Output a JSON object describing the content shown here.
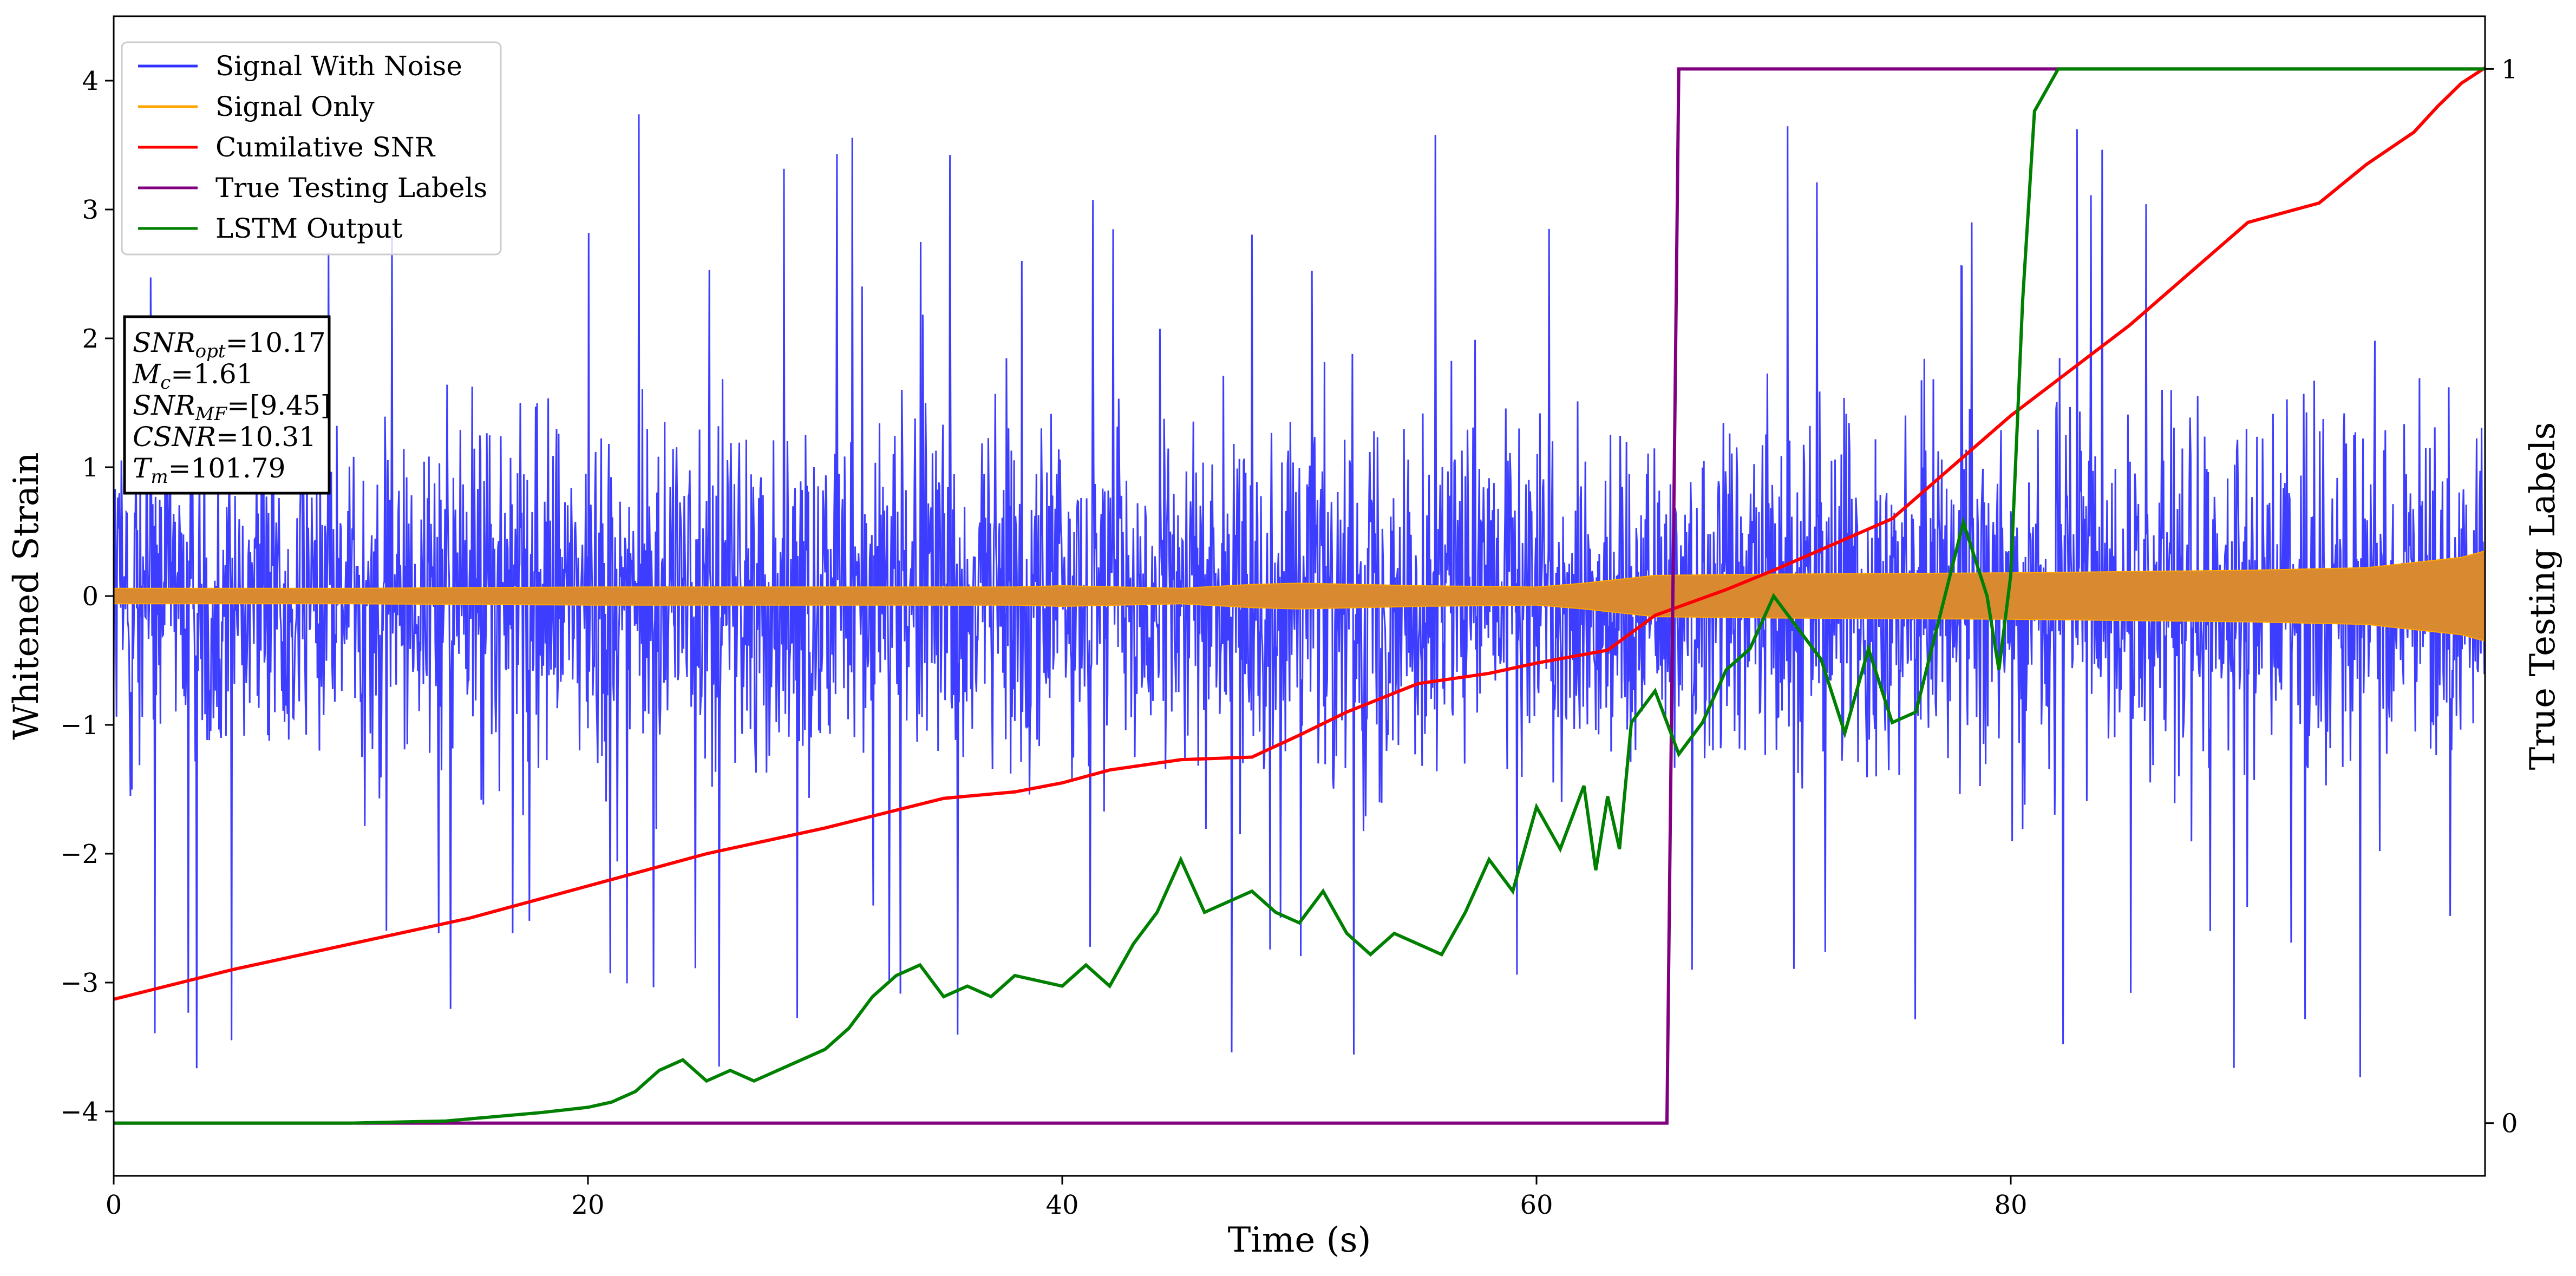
{
  "chart_data": {
    "type": "line",
    "xlabel": "Time (s)",
    "ylabel": "Whitened Strain",
    "y2label": "True Testing Labels",
    "xlim": [
      0,
      100
    ],
    "ylim": [
      -4.5,
      4.5
    ],
    "y2lim": [
      -0.05,
      1.05
    ],
    "x_ticks": [
      0,
      20,
      40,
      60,
      80
    ],
    "y_ticks": [
      -4,
      -3,
      -2,
      -1,
      0,
      1,
      2,
      3,
      4
    ],
    "y2_ticks": [
      0,
      1
    ],
    "grid": false,
    "legend_position": "top-left",
    "annotation": {
      "lines": [
        {
          "sym": "SNR",
          "sub": "opt",
          "val": "=10.17"
        },
        {
          "sym": "M",
          "sub": "c",
          "val": "=1.61"
        },
        {
          "sym": "SNR",
          "sub": "MF",
          "val": "=[9.45]"
        },
        {
          "sym": "CSNR",
          "sub": "",
          "val": "=10.31"
        },
        {
          "sym": "T",
          "sub": "m",
          "val": "=101.79"
        }
      ]
    },
    "series": [
      {
        "name": "Signal With Noise",
        "color": "#3333ff",
        "axis": "left",
        "kind": "noise",
        "typical_range": [
          -1.5,
          1.5
        ],
        "max_abs": 4.0
      },
      {
        "name": "Signal Only",
        "color": "#ffa500",
        "axis": "left",
        "kind": "envelope",
        "x": [
          0,
          10,
          20,
          30,
          38,
          40,
          45,
          48,
          50,
          55,
          60,
          62,
          65,
          70,
          80,
          90,
          95,
          99,
          100
        ],
        "envelope": [
          0.06,
          0.06,
          0.07,
          0.07,
          0.07,
          0.08,
          0.06,
          0.09,
          0.1,
          0.08,
          0.07,
          0.1,
          0.16,
          0.17,
          0.18,
          0.2,
          0.22,
          0.3,
          0.35
        ]
      },
      {
        "name": "Cumilative SNR",
        "color": "#ff0000",
        "axis": "left",
        "x": [
          0,
          5,
          10,
          15,
          20,
          25,
          30,
          35,
          38,
          40,
          42,
          45,
          48,
          50,
          52,
          55,
          58,
          60,
          63,
          65,
          68,
          70,
          75,
          80,
          85,
          90,
          93,
          95,
          97,
          98,
          99,
          100
        ],
        "values": [
          -3.13,
          -2.9,
          -2.7,
          -2.5,
          -2.25,
          -2.0,
          -1.8,
          -1.57,
          -1.52,
          -1.45,
          -1.35,
          -1.27,
          -1.25,
          -1.08,
          -0.9,
          -0.68,
          -0.6,
          -0.52,
          -0.42,
          -0.15,
          0.05,
          0.2,
          0.6,
          1.4,
          2.1,
          2.9,
          3.05,
          3.35,
          3.6,
          3.8,
          3.98,
          4.1
        ]
      },
      {
        "name": "True Testing Labels",
        "color": "#800080",
        "axis": "right",
        "x": [
          0,
          65.5,
          66.0,
          100
        ],
        "values": [
          0,
          0,
          1,
          1
        ]
      },
      {
        "name": "LSTM Output",
        "color": "#008000",
        "axis": "right",
        "x": [
          0,
          10,
          14,
          18,
          20,
          21,
          22,
          23,
          24,
          25,
          26,
          27,
          28,
          29,
          30,
          31,
          32,
          33,
          34,
          35,
          36,
          37,
          38,
          40,
          41,
          42,
          43,
          44,
          45,
          46,
          47,
          48,
          49,
          50,
          51,
          52,
          53,
          54,
          55,
          56,
          57,
          58,
          59,
          60,
          61,
          62,
          62.5,
          63,
          63.5,
          64,
          65,
          66,
          67,
          68,
          69,
          70,
          71,
          72,
          73,
          74,
          75,
          76,
          77,
          78,
          79,
          79.5,
          80,
          80.5,
          81,
          82,
          84,
          86,
          90,
          95,
          100
        ],
        "values": [
          0,
          0,
          0.002,
          0.01,
          0.015,
          0.02,
          0.03,
          0.05,
          0.06,
          0.04,
          0.05,
          0.04,
          0.05,
          0.06,
          0.07,
          0.09,
          0.12,
          0.14,
          0.15,
          0.12,
          0.13,
          0.12,
          0.14,
          0.13,
          0.15,
          0.13,
          0.17,
          0.2,
          0.25,
          0.2,
          0.21,
          0.22,
          0.2,
          0.19,
          0.22,
          0.18,
          0.16,
          0.18,
          0.17,
          0.16,
          0.2,
          0.25,
          0.22,
          0.3,
          0.26,
          0.32,
          0.24,
          0.31,
          0.26,
          0.38,
          0.41,
          0.35,
          0.38,
          0.43,
          0.45,
          0.5,
          0.47,
          0.44,
          0.37,
          0.45,
          0.38,
          0.39,
          0.48,
          0.57,
          0.5,
          0.43,
          0.52,
          0.78,
          0.96,
          1.0,
          1.0,
          1.0,
          1.0,
          1.0,
          1.0
        ]
      }
    ]
  }
}
